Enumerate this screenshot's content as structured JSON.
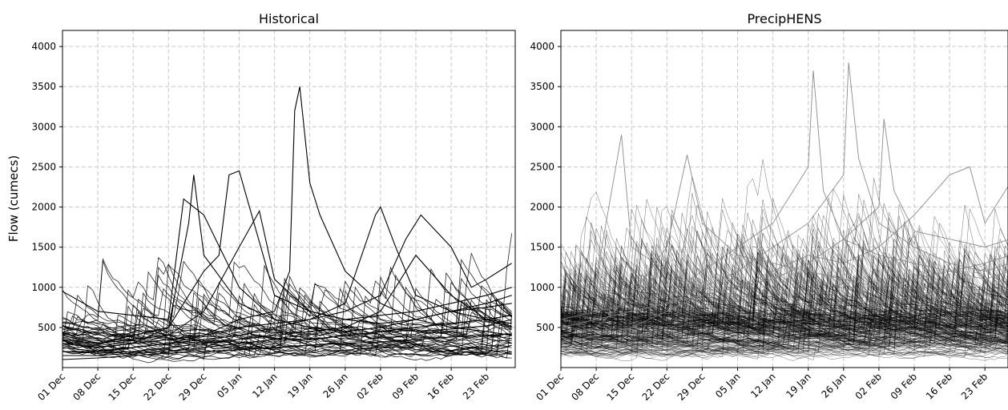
{
  "figure": {
    "ylabel": "Flow (cumecs)"
  },
  "chart_data": [
    {
      "type": "line",
      "title": "Historical",
      "xlabel": "",
      "ylabel": "Flow (cumecs)",
      "x_tick_labels": [
        "01 Dec",
        "08 Dec",
        "15 Dec",
        "22 Dec",
        "29 Dec",
        "05 Jan",
        "12 Jan",
        "19 Jan",
        "26 Jan",
        "02 Feb",
        "09 Feb",
        "16 Feb",
        "23 Feb"
      ],
      "y_ticks": [
        500,
        1000,
        1500,
        2000,
        2500,
        3000,
        3500,
        4000
      ],
      "ylim": [
        0,
        4200
      ],
      "grid": true,
      "line_color": "#000000",
      "series": [
        {
          "x": [
            "01 Dec",
            "08 Dec",
            "15 Dec",
            "22 Dec",
            "25 Dec",
            "29 Dec",
            "05 Jan",
            "12 Jan",
            "19 Jan",
            "26 Jan",
            "02 Feb",
            "09 Feb",
            "16 Feb",
            "23 Feb",
            "28 Feb"
          ],
          "values": [
            950,
            700,
            650,
            600,
            2100,
            1900,
            1000,
            600,
            500,
            450,
            500,
            450,
            480,
            520,
            600
          ]
        },
        {
          "x": [
            "01 Dec",
            "08 Dec",
            "15 Dec",
            "22 Dec",
            "29 Dec",
            "01 Jan",
            "03 Jan",
            "05 Jan",
            "12 Jan",
            "19 Jan",
            "26 Jan",
            "02 Feb",
            "09 Feb",
            "16 Feb",
            "23 Feb",
            "28 Feb"
          ],
          "values": [
            400,
            300,
            400,
            500,
            1200,
            1400,
            2400,
            2450,
            900,
            700,
            600,
            650,
            700,
            800,
            900,
            1000
          ]
        },
        {
          "x": [
            "01 Dec",
            "08 Dec",
            "15 Dec",
            "22 Dec",
            "26 Dec",
            "27 Dec",
            "29 Dec",
            "05 Jan",
            "12 Jan",
            "19 Jan",
            "26 Jan",
            "02 Feb",
            "09 Feb",
            "16 Feb",
            "23 Feb",
            "28 Feb"
          ],
          "values": [
            300,
            250,
            300,
            500,
            1800,
            2400,
            1400,
            800,
            600,
            500,
            450,
            500,
            600,
            700,
            800,
            900
          ]
        },
        {
          "x": [
            "01 Dec",
            "08 Dec",
            "15 Dec",
            "22 Dec",
            "29 Dec",
            "05 Jan",
            "12 Jan",
            "15 Jan",
            "16 Jan",
            "17 Jan",
            "19 Jan",
            "21 Jan",
            "26 Jan",
            "02 Feb",
            "09 Feb",
            "16 Feb",
            "23 Feb",
            "28 Feb"
          ],
          "values": [
            200,
            200,
            250,
            300,
            400,
            600,
            700,
            1200,
            3200,
            3500,
            2300,
            1900,
            1200,
            800,
            600,
            500,
            450,
            400
          ]
        },
        {
          "x": [
            "01 Dec",
            "08 Dec",
            "15 Dec",
            "22 Dec",
            "29 Dec",
            "05 Jan",
            "12 Jan",
            "19 Jan",
            "26 Jan",
            "01 Feb",
            "02 Feb",
            "05 Feb",
            "09 Feb",
            "16 Feb",
            "23 Feb",
            "28 Feb"
          ],
          "values": [
            250,
            200,
            250,
            300,
            350,
            400,
            500,
            600,
            800,
            1900,
            2000,
            1500,
            900,
            700,
            600,
            550
          ]
        },
        {
          "x": [
            "01 Dec",
            "08 Dec",
            "15 Dec",
            "22 Dec",
            "29 Dec",
            "05 Jan",
            "12 Jan",
            "19 Jan",
            "26 Jan",
            "02 Feb",
            "07 Feb",
            "10 Feb",
            "16 Feb",
            "20 Feb",
            "23 Feb",
            "28 Feb"
          ],
          "values": [
            300,
            250,
            300,
            350,
            400,
            500,
            550,
            600,
            700,
            900,
            1600,
            1900,
            1500,
            1000,
            1100,
            1300
          ]
        },
        {
          "x": [
            "01 Dec",
            "08 Dec",
            "15 Dec",
            "22 Dec",
            "29 Dec",
            "05 Jan",
            "09 Jan",
            "12 Jan",
            "19 Jan",
            "26 Jan",
            "02 Feb",
            "09 Feb",
            "16 Feb",
            "23 Feb",
            "28 Feb"
          ],
          "values": [
            350,
            300,
            350,
            400,
            700,
            1500,
            1950,
            1100,
            700,
            600,
            550,
            600,
            700,
            750,
            800
          ]
        },
        {
          "x": [
            "01 Dec",
            "08 Dec",
            "15 Dec",
            "22 Dec",
            "29 Dec",
            "05 Jan",
            "12 Jan",
            "19 Jan",
            "26 Jan",
            "02 Feb",
            "09 Feb",
            "16 Feb",
            "23 Feb",
            "28 Feb"
          ],
          "values": [
            200,
            180,
            200,
            250,
            300,
            350,
            400,
            450,
            500,
            700,
            1400,
            900,
            600,
            500
          ]
        },
        {
          "x": [
            "01 Dec",
            "08 Dec",
            "15 Dec",
            "22 Dec",
            "29 Dec",
            "05 Jan",
            "12 Jan",
            "19 Jan",
            "26 Jan",
            "02 Feb",
            "09 Feb",
            "16 Feb",
            "23 Feb",
            "28 Feb"
          ],
          "values": [
            150,
            150,
            180,
            200,
            250,
            300,
            350,
            350,
            400,
            450,
            500,
            550,
            600,
            650
          ]
        },
        {
          "x": [
            "01 Dec",
            "08 Dec",
            "15 Dec",
            "22 Dec",
            "29 Dec",
            "05 Jan",
            "12 Jan",
            "19 Jan",
            "26 Jan",
            "02 Feb",
            "09 Feb",
            "16 Feb",
            "23 Feb",
            "28 Feb"
          ],
          "values": [
            100,
            120,
            150,
            180,
            200,
            220,
            250,
            280,
            300,
            320,
            350,
            380,
            400,
            420
          ]
        }
      ]
    },
    {
      "type": "line",
      "title": "PrecipHENS",
      "xlabel": "",
      "ylabel": "",
      "x_tick_labels": [
        "01 Dec",
        "08 Dec",
        "15 Dec",
        "22 Dec",
        "29 Dec",
        "05 Jan",
        "12 Jan",
        "19 Jan",
        "26 Jan",
        "02 Feb",
        "09 Feb",
        "16 Feb",
        "23 Feb"
      ],
      "y_ticks": [
        500,
        1000,
        1500,
        2000,
        2500,
        3000,
        3500,
        4000
      ],
      "ylim": [
        0,
        4200
      ],
      "grid": true,
      "line_color": "#000000",
      "series": [
        {
          "x": [
            "01 Dec",
            "08 Dec",
            "13 Dec",
            "15 Dec",
            "22 Dec",
            "29 Dec",
            "05 Jan",
            "12 Jan",
            "19 Jan",
            "26 Jan",
            "02 Feb",
            "09 Feb",
            "16 Feb",
            "23 Feb",
            "28 Feb"
          ],
          "values": [
            800,
            1100,
            2900,
            1500,
            1200,
            1000,
            900,
            800,
            800,
            700,
            800,
            900,
            1000,
            900,
            1000
          ]
        },
        {
          "x": [
            "01 Dec",
            "08 Dec",
            "15 Dec",
            "22 Dec",
            "29 Dec",
            "05 Jan",
            "12 Jan",
            "19 Jan",
            "20 Jan",
            "22 Jan",
            "26 Jan",
            "02 Feb",
            "09 Feb",
            "16 Feb",
            "23 Feb",
            "28 Feb"
          ],
          "values": [
            600,
            700,
            800,
            900,
            1200,
            1500,
            1800,
            2500,
            3700,
            2200,
            1600,
            1400,
            1300,
            1200,
            1100,
            1200
          ]
        },
        {
          "x": [
            "01 Dec",
            "08 Dec",
            "15 Dec",
            "22 Dec",
            "29 Dec",
            "05 Jan",
            "12 Jan",
            "19 Jan",
            "26 Jan",
            "27 Jan",
            "29 Jan",
            "02 Feb",
            "09 Feb",
            "16 Feb",
            "23 Feb",
            "28 Feb"
          ],
          "values": [
            500,
            600,
            700,
            800,
            1000,
            1200,
            1500,
            1800,
            2400,
            3800,
            2600,
            1800,
            1500,
            1300,
            1200,
            1300
          ]
        },
        {
          "x": [
            "01 Dec",
            "08 Dec",
            "15 Dec",
            "22 Dec",
            "26 Dec",
            "29 Dec",
            "05 Jan",
            "12 Jan",
            "19 Jan",
            "26 Jan",
            "02 Feb",
            "09 Feb",
            "16 Feb",
            "23 Feb",
            "28 Feb"
          ],
          "values": [
            400,
            500,
            900,
            1500,
            2650,
            1800,
            1400,
            1300,
            1200,
            1100,
            1000,
            1100,
            1200,
            1300,
            1400
          ]
        },
        {
          "x": [
            "01 Dec",
            "08 Dec",
            "15 Dec",
            "22 Dec",
            "29 Dec",
            "05 Jan",
            "12 Jan",
            "19 Jan",
            "26 Jan",
            "02 Feb",
            "03 Feb",
            "05 Feb",
            "09 Feb",
            "16 Feb",
            "23 Feb",
            "28 Feb"
          ],
          "values": [
            500,
            600,
            700,
            800,
            900,
            1000,
            1100,
            1300,
            1600,
            2000,
            3100,
            2200,
            1700,
            1600,
            1500,
            1600
          ]
        },
        {
          "x": [
            "01 Dec",
            "08 Dec",
            "15 Dec",
            "22 Dec",
            "29 Dec",
            "05 Jan",
            "12 Jan",
            "19 Jan",
            "26 Jan",
            "02 Feb",
            "09 Feb",
            "16 Feb",
            "20 Feb",
            "23 Feb",
            "28 Feb"
          ],
          "values": [
            300,
            400,
            500,
            700,
            900,
            1000,
            1200,
            1400,
            1300,
            1500,
            1900,
            2400,
            2500,
            1800,
            2300
          ]
        }
      ]
    }
  ]
}
